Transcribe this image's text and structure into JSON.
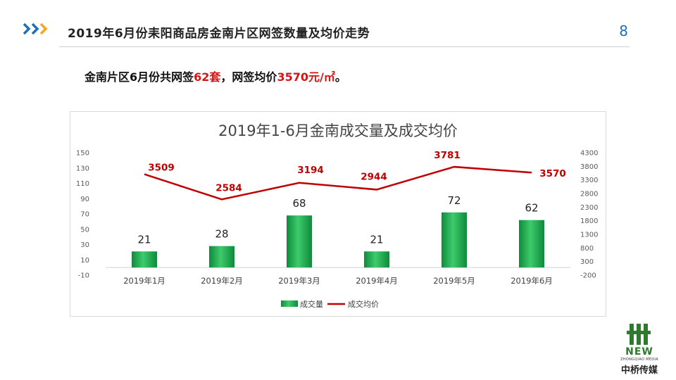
{
  "header": {
    "title": "2019年6月份耒阳商品房金南片区网签数量及均价走势",
    "page_number": "8"
  },
  "summary": {
    "prefix": "金南片区6月份共网签",
    "count": "62套",
    "middle": "，网签均价",
    "price": "3570元/㎡",
    "suffix": "。"
  },
  "logo": {
    "mark": "NEW",
    "sub": "ZHONGQIAO MEDIA",
    "name": "中桥传媒"
  },
  "colors": {
    "bar_light": "#3ecb6c",
    "bar_dark": "#0f8a3c",
    "line": "#c00000",
    "accent_blue": "#1e6fb8",
    "accent_orange": "#f5a623"
  },
  "chart_data": {
    "type": "bar+line",
    "title": "2019年1-6月金南成交量及成交均价",
    "categories": [
      "2019年1月",
      "2019年2月",
      "2019年3月",
      "2019年4月",
      "2019年5月",
      "2019年6月"
    ],
    "series": [
      {
        "name": "成交量",
        "type": "bar",
        "axis": "left",
        "values": [
          21,
          28,
          68,
          21,
          72,
          62
        ]
      },
      {
        "name": "成交均价",
        "type": "line",
        "axis": "right",
        "values": [
          3509,
          2584,
          3194,
          2944,
          3781,
          3570
        ]
      }
    ],
    "y_left": {
      "min": -10,
      "max": 150,
      "ticks": [
        -10,
        10,
        30,
        50,
        70,
        90,
        110,
        130,
        150
      ]
    },
    "y_right": {
      "min": -200,
      "max": 4300,
      "ticks": [
        -200,
        300,
        800,
        1300,
        1800,
        2300,
        2800,
        3300,
        3800,
        4300
      ]
    },
    "legend_position": "bottom",
    "grid": false
  }
}
